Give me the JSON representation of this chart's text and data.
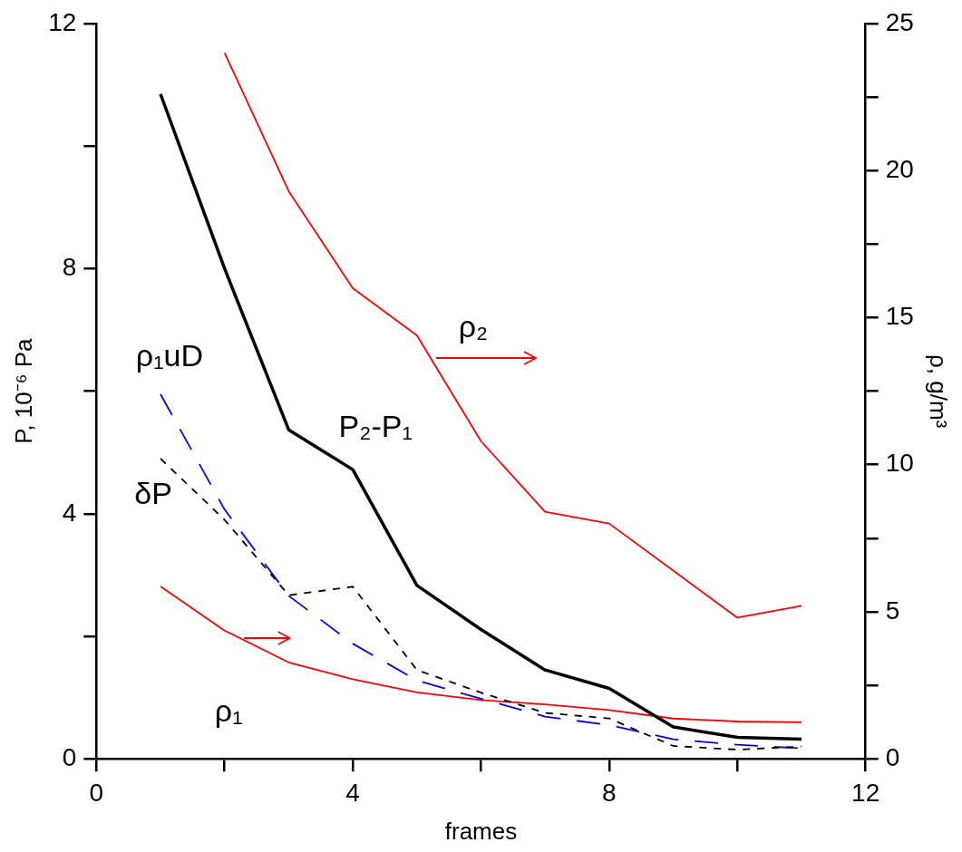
{
  "chart_data": {
    "type": "line",
    "xlabel": "frames",
    "ylabel": "P, 10⁻⁶ Pa",
    "y2label": "ρ, g/m³",
    "x": [
      1,
      2,
      3,
      4,
      5,
      6,
      7,
      8,
      9,
      10,
      11
    ],
    "xlim": [
      0,
      12
    ],
    "xticks": [
      0,
      {
        "value": 2,
        "label": null
      },
      4,
      {
        "value": 6,
        "label": null
      },
      8,
      {
        "value": 10,
        "label": null
      },
      12
    ],
    "ylim": [
      0,
      12
    ],
    "yticks": [
      0,
      {
        "value": 2,
        "label": null
      },
      4,
      {
        "value": 6,
        "label": null
      },
      8,
      {
        "value": 10,
        "label": null
      },
      12
    ],
    "y2lim": [
      0,
      25
    ],
    "y2ticks": [
      0,
      {
        "value": 2.5,
        "label": null
      },
      5,
      {
        "value": 7.5,
        "label": null
      },
      10,
      {
        "value": 12.5,
        "label": null
      },
      15,
      {
        "value": 17.5,
        "label": null
      },
      20,
      {
        "value": 22.5,
        "label": null
      },
      25
    ],
    "grid": false,
    "legend": false,
    "marker": "none",
    "series": [
      {
        "name": "P₂-P₁",
        "color": "#000000",
        "line_style": "solid",
        "values": [
          10.85,
          8.0,
          5.37,
          4.72,
          2.83,
          2.11,
          1.45,
          1.15,
          0.52,
          0.35,
          0.32
        ]
      },
      {
        "name": "δP",
        "color": "#000000",
        "line_style": "dashed",
        "values": [
          4.9,
          3.9,
          2.67,
          2.81,
          1.45,
          1.08,
          0.75,
          0.66,
          0.21,
          0.15,
          0.2
        ]
      },
      {
        "name": "ρ₁uD",
        "color": "#0000ff",
        "line_style": "dashed",
        "values": [
          5.95,
          4.07,
          2.66,
          1.88,
          1.28,
          0.98,
          0.69,
          0.55,
          0.32,
          0.23,
          0.17
        ]
      },
      {
        "name": "ρ₂",
        "color": "#ff0000",
        "line_style": "solid",
        "axis": "y2",
        "values": [
          null,
          24.0,
          19.3,
          16.0,
          14.4,
          10.8,
          8.4,
          8.0,
          6.4,
          4.8,
          5.2
        ]
      },
      {
        "name": "ρ₁",
        "color": "#ff0000",
        "line_style": "solid",
        "axis": "y2",
        "values": [
          5.86,
          4.36,
          3.28,
          2.71,
          2.26,
          2.0,
          1.85,
          1.66,
          1.37,
          1.27,
          1.24
        ]
      }
    ]
  }
}
